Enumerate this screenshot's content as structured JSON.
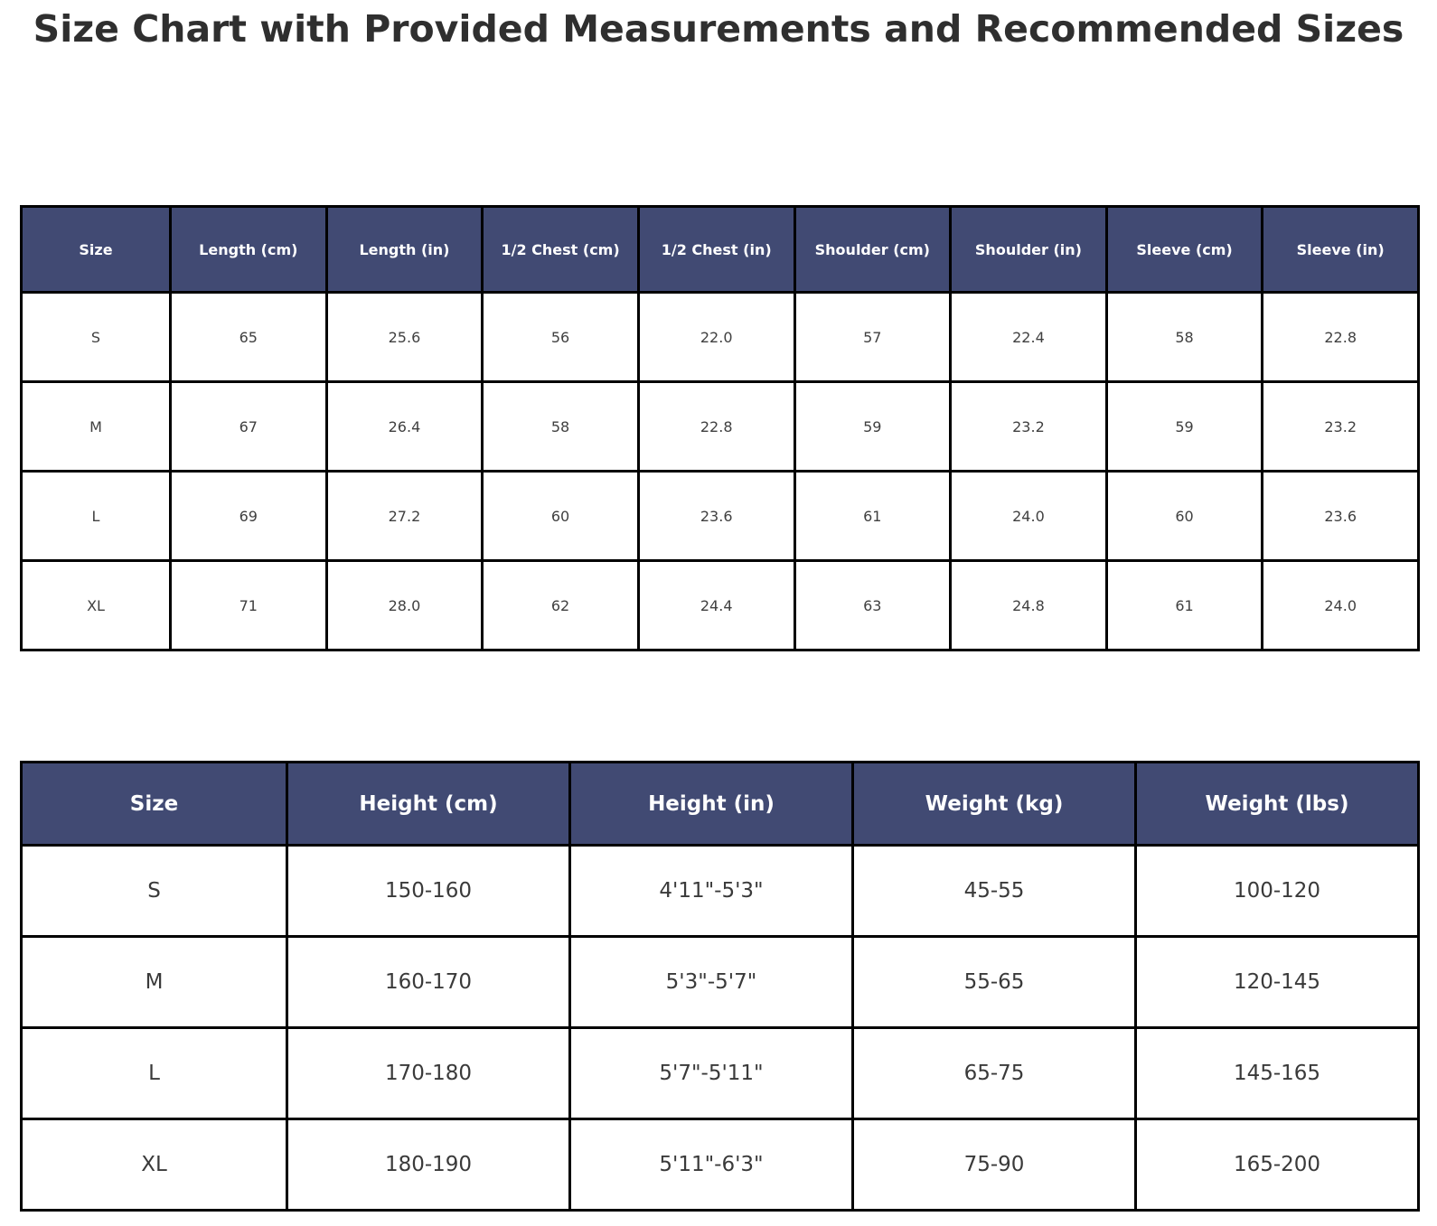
{
  "title": "Size Chart with Provided Measurements and Recommended Sizes",
  "colors": {
    "header_bg": "#414a73",
    "header_text": "#ffffff",
    "cell_text": "#404040",
    "grid_border": "#000000",
    "title_text": "#2f2f2f",
    "background": "#ffffff"
  },
  "chart_data": [
    {
      "type": "table",
      "name": "provided-measurements",
      "headers": [
        "Size",
        "Length (cm)",
        "Length (in)",
        "1/2 Chest (cm)",
        "1/2 Chest (in)",
        "Shoulder (cm)",
        "Shoulder (in)",
        "Sleeve (cm)",
        "Sleeve (in)"
      ],
      "rows": [
        [
          "S",
          "65",
          "25.6",
          "56",
          "22.0",
          "57",
          "22.4",
          "58",
          "22.8"
        ],
        [
          "M",
          "67",
          "26.4",
          "58",
          "22.8",
          "59",
          "23.2",
          "59",
          "23.2"
        ],
        [
          "L",
          "69",
          "27.2",
          "60",
          "23.6",
          "61",
          "24.0",
          "60",
          "23.6"
        ],
        [
          "XL",
          "71",
          "28.0",
          "62",
          "24.4",
          "63",
          "24.8",
          "61",
          "24.0"
        ]
      ]
    },
    {
      "type": "table",
      "name": "recommended-sizes",
      "headers": [
        "Size",
        "Height (cm)",
        "Height (in)",
        "Weight (kg)",
        "Weight (lbs)"
      ],
      "rows": [
        [
          "S",
          "150-160",
          "4'11\"-5'3\"",
          "45-55",
          "100-120"
        ],
        [
          "M",
          "160-170",
          "5'3\"-5'7\"",
          "55-65",
          "120-145"
        ],
        [
          "L",
          "170-180",
          "5'7\"-5'11\"",
          "65-75",
          "145-165"
        ],
        [
          "XL",
          "180-190",
          "5'11\"-6'3\"",
          "75-90",
          "165-200"
        ]
      ]
    }
  ]
}
